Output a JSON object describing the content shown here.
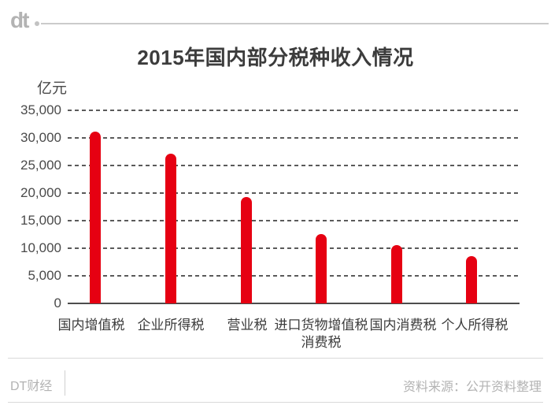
{
  "header": {
    "logo": "dt"
  },
  "title": "2015年国内部分税种收入情况",
  "chart_data": {
    "type": "bar",
    "title": "2015年国内部分税种收入情况",
    "unit_label": "亿元",
    "xlabel": "",
    "ylabel": "亿元",
    "ylim": [
      0,
      35000
    ],
    "grid": "horizontal-dashed",
    "legend": "none",
    "categories": [
      "国内增值税",
      "企业所得税",
      "营业税",
      "进口货物增值税\n消费税",
      "国内消费税",
      "个人所得税"
    ],
    "values": [
      31109,
      27133,
      19313,
      12514,
      10542,
      8618
    ],
    "y_ticks": [
      35000,
      30000,
      25000,
      20000,
      15000,
      10000,
      5000,
      0
    ],
    "y_tick_labels": [
      "35,000",
      "30,000",
      "25,000",
      "20,000",
      "15,000",
      "10,000",
      "5,000",
      "0"
    ],
    "bar_color": "#e60012"
  },
  "footer": {
    "brand": "DT财经",
    "source": "资料来源：公开资料整理"
  },
  "colors": {
    "accent_red": "#e60012",
    "title_text": "#3c3c3c",
    "axis_text": "#4a4a4a",
    "muted_gray": "#b3b3b3",
    "rule_gray": "#dadada"
  }
}
